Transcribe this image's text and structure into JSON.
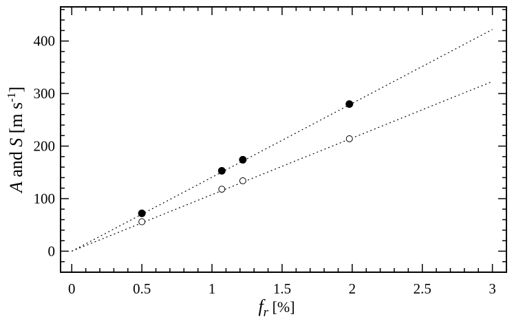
{
  "chart_data": {
    "type": "scatter",
    "xlabel_italic": "f",
    "xlabel_sub": "r",
    "xlabel_unit": " [%]",
    "ylabel_a": "A",
    "ylabel_mid": " and ",
    "ylabel_s": "S",
    "ylabel_unit": " [m s",
    "ylabel_sup": "-1",
    "ylabel_close": "]",
    "xlim": [
      -0.08,
      3.1
    ],
    "ylim": [
      -40,
      465
    ],
    "xticks": [
      0,
      0.5,
      1,
      1.5,
      2,
      2.5,
      3
    ],
    "xtick_labels": [
      "0",
      "0.5",
      "1",
      "1.5",
      "2",
      "2.5",
      "3"
    ],
    "yticks": [
      0,
      100,
      200,
      300,
      400
    ],
    "ytick_labels": [
      "0",
      "100",
      "200",
      "300",
      "400"
    ],
    "grid": false,
    "series": [
      {
        "marker": "filled-circle",
        "x": [
          0.5,
          1.07,
          1.22,
          1.98
        ],
        "y": [
          72,
          153,
          174,
          280
        ],
        "fit": {
          "x": [
            0,
            3
          ],
          "y": [
            0,
            422
          ]
        }
      },
      {
        "marker": "open-circle",
        "x": [
          0.5,
          1.07,
          1.22,
          1.98
        ],
        "y": [
          56,
          118,
          134,
          214
        ],
        "fit": {
          "x": [
            0,
            3
          ],
          "y": [
            0,
            323
          ]
        }
      }
    ]
  }
}
